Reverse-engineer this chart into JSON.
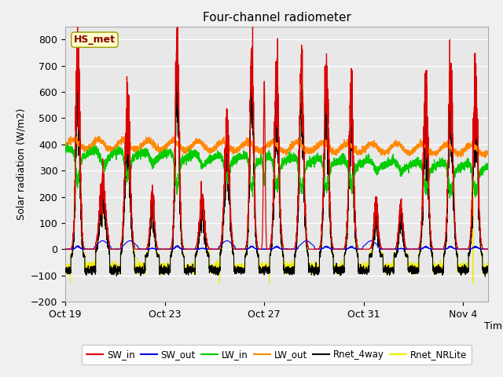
{
  "title": "Four-channel radiometer",
  "xlabel": "Time",
  "ylabel": "Solar radiation (W/m2)",
  "ylim": [
    -200,
    850
  ],
  "yticks": [
    -200,
    -100,
    0,
    100,
    200,
    300,
    400,
    500,
    600,
    700,
    800
  ],
  "fig_bg_color": "#f0f0f0",
  "plot_bg_color": "#e8e8e8",
  "legend_entries": [
    "SW_in",
    "SW_out",
    "LW_in",
    "LW_out",
    "Rnet_4way",
    "Rnet_NRLite"
  ],
  "legend_colors": [
    "#dd0000",
    "#0000ee",
    "#00cc00",
    "#ff8800",
    "#000000",
    "#eeee00"
  ],
  "label_box_text": "HS_met",
  "label_box_color": "#ffffcc",
  "label_box_edge": "#999900",
  "label_box_text_color": "#880000",
  "xtick_labels": [
    "Oct 19",
    "Oct 23",
    "Oct 27",
    "Oct 31",
    "Nov 4"
  ],
  "xtick_positions": [
    0,
    4,
    8,
    12,
    16
  ],
  "total_days": 17,
  "n_points": 4080
}
